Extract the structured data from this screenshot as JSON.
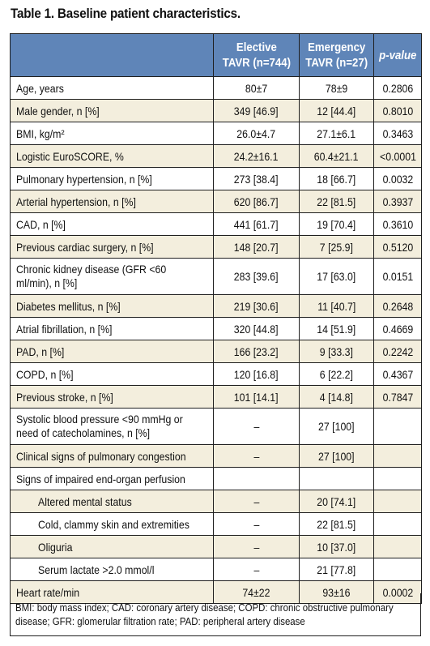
{
  "title": "Table 1. Baseline patient characteristics.",
  "header": {
    "col_elective_line1": "Elective",
    "col_elective_line2": "TAVR (n=744)",
    "col_emergency_line1": "Emergency",
    "col_emergency_line2": "TAVR (n=27)",
    "col_pvalue": "p-value"
  },
  "rows": [
    {
      "label": "Age, years",
      "elective": "80±7",
      "emergency": "78±9",
      "p": "0.2806"
    },
    {
      "label": "Male gender, n [%]",
      "elective": "349 [46.9]",
      "emergency": "12 [44.4]",
      "p": "0.8010"
    },
    {
      "label": "BMI, kg/m²",
      "elective": "26.0±4.7",
      "emergency": "27.1±6.1",
      "p": "0.3463"
    },
    {
      "label": "Logistic EuroSCORE, %",
      "elective": "24.2±16.1",
      "emergency": "60.4±21.1",
      "p": "<0.0001"
    },
    {
      "label": "Pulmonary hypertension, n [%]",
      "elective": "273 [38.4]",
      "emergency": "18 [66.7]",
      "p": "0.0032"
    },
    {
      "label": "Arterial hypertension, n [%]",
      "elective": "620 [86.7]",
      "emergency": "22 [81.5]",
      "p": "0.3937"
    },
    {
      "label": "CAD, n [%]",
      "elective": "441 [61.7]",
      "emergency": "19 [70.4]",
      "p": "0.3610"
    },
    {
      "label": "Previous cardiac surgery, n [%]",
      "elective": "148 [20.7]",
      "emergency": "7 [25.9]",
      "p": "0.5120"
    },
    {
      "label": "Chronic kidney disease (GFR <60 ml/min), n [%]",
      "elective": "283 [39.6]",
      "emergency": "17 [63.0]",
      "p": "0.0151"
    },
    {
      "label": "Diabetes mellitus, n [%]",
      "elective": "219 [30.6]",
      "emergency": "11 [40.7]",
      "p": "0.2648"
    },
    {
      "label": "Atrial fibrillation, n [%]",
      "elective": "320 [44.8]",
      "emergency": "14 [51.9]",
      "p": "0.4669"
    },
    {
      "label": "PAD, n [%]",
      "elective": "166 [23.2]",
      "emergency": "9 [33.3]",
      "p": "0.2242"
    },
    {
      "label": "COPD, n [%]",
      "elective": "120 [16.8]",
      "emergency": "6 [22.2]",
      "p": "0.4367"
    },
    {
      "label": "Previous stroke, n [%]",
      "elective": "101 [14.1]",
      "emergency": "4 [14.8]",
      "p": "0.7847"
    },
    {
      "label": "Systolic blood pressure <90 mmHg or need of catecholamines, n [%]",
      "elective": "–",
      "emergency": "27 [100]",
      "p": ""
    },
    {
      "label": "Clinical signs of pulmonary congestion",
      "elective": "–",
      "emergency": "27 [100]",
      "p": ""
    },
    {
      "label": "Signs of impaired end-organ perfusion",
      "elective": "",
      "emergency": "",
      "p": ""
    },
    {
      "label": "Altered mental status",
      "elective": "–",
      "emergency": "20 [74.1]",
      "p": ""
    },
    {
      "label": "Cold, clammy skin and extremities",
      "elective": "–",
      "emergency": "22 [81.5]",
      "p": ""
    },
    {
      "label": "Oliguria",
      "elective": "–",
      "emergency": "10 [37.0]",
      "p": ""
    },
    {
      "label": "Serum lactate >2.0 mmol/l",
      "elective": "–",
      "emergency": "21 [77.8]",
      "p": ""
    },
    {
      "label": "Heart rate/min",
      "elective": "74±22",
      "emergency": "93±16",
      "p": "0.0002"
    }
  ],
  "footnote": "BMI: body mass index; CAD: coronary artery disease; COPD: chronic obstructive pulmonary disease; GFR: glomerular filtration rate; PAD: peripheral artery disease"
}
